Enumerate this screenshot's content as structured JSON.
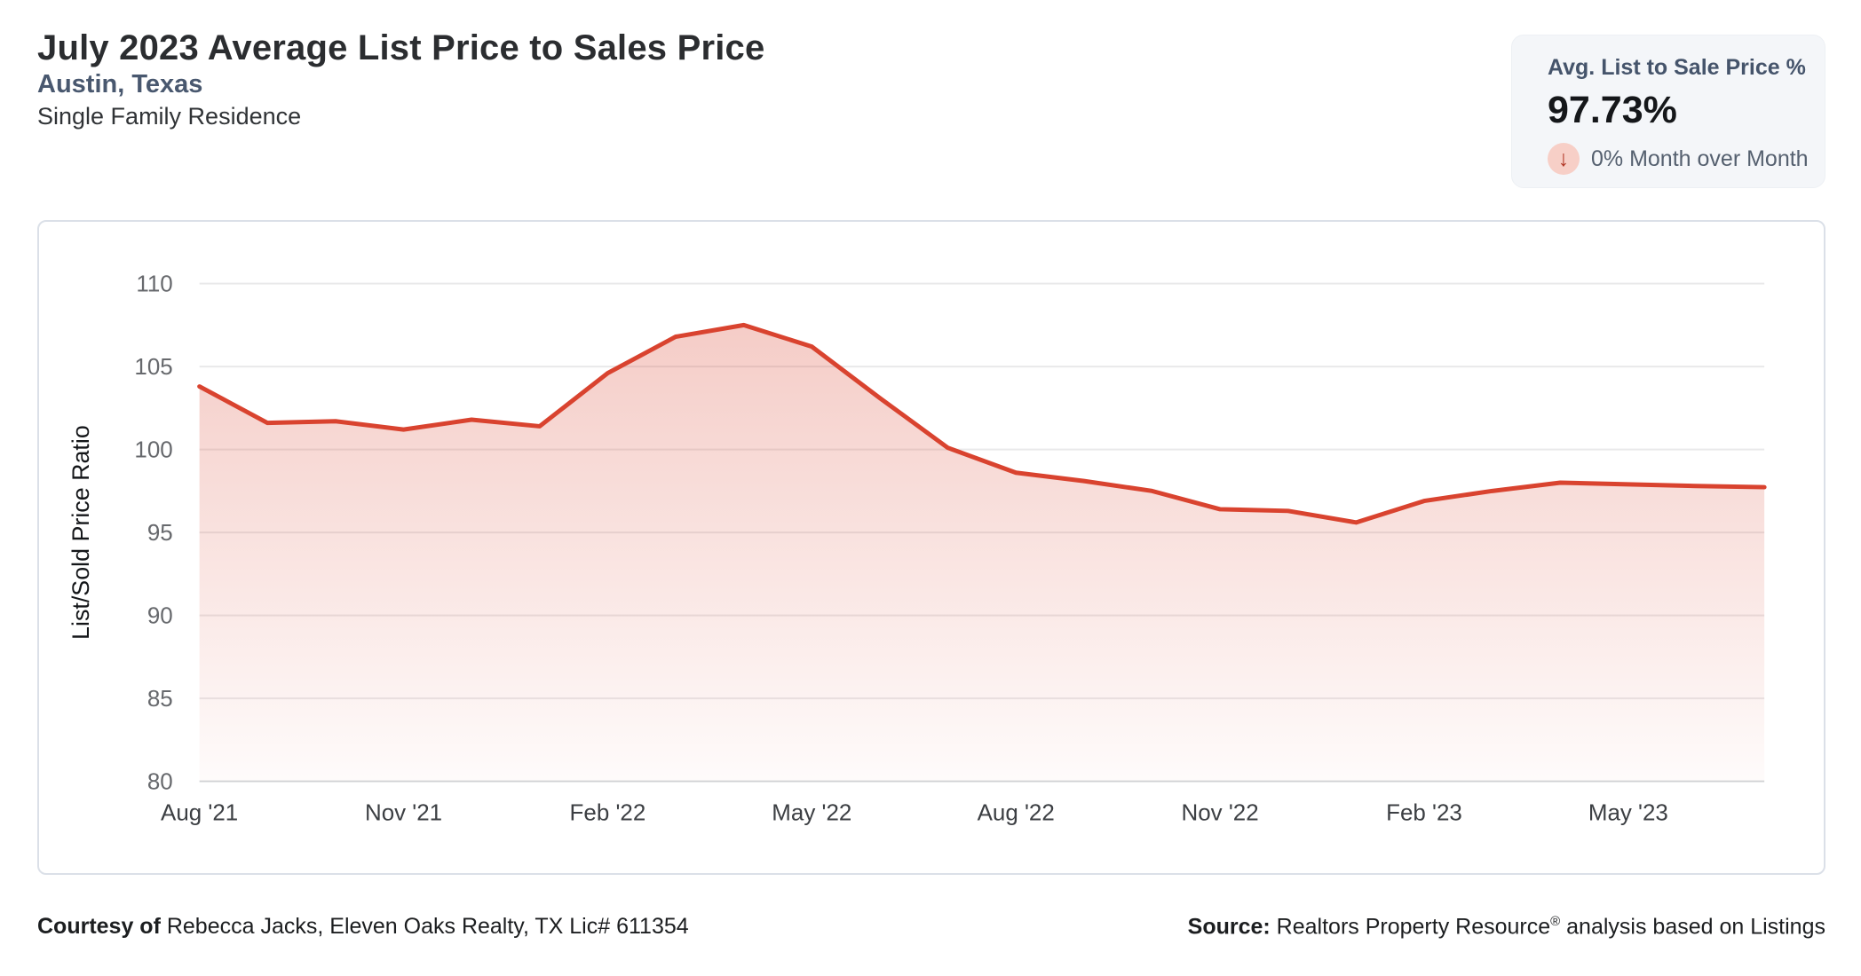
{
  "header": {
    "title": "July 2023 Average List Price to Sales Price",
    "subtitle": "Austin, Texas",
    "property_type": "Single Family Residence"
  },
  "stat_card": {
    "label": "Avg. List to Sale Price %",
    "value": "97.73%",
    "arrow_glyph": "↓",
    "mom_text": "0% Month over Month",
    "arrow_color": "#b23726",
    "arrow_bg_color": "#f7cfc7"
  },
  "chart_data": {
    "type": "area",
    "title": "",
    "ylabel": "List/Sold Price Ratio",
    "xlabel": "",
    "ylim": [
      80,
      110
    ],
    "yticks": [
      80,
      85,
      90,
      95,
      100,
      105,
      110
    ],
    "grid": true,
    "legend": "none",
    "line_color": "#d9432f",
    "x": [
      "Aug '21",
      "Sep '21",
      "Oct '21",
      "Nov '21",
      "Dec '21",
      "Jan '22",
      "Feb '22",
      "Mar '22",
      "Apr '22",
      "May '22",
      "Jun '22",
      "Jul '22",
      "Aug '22",
      "Sep '22",
      "Oct '22",
      "Nov '22",
      "Dec '22",
      "Jan '23",
      "Feb '23",
      "Mar '23",
      "Apr '23",
      "May '23",
      "Jun '23",
      "Jul '23"
    ],
    "x_ticks": [
      "Aug '21",
      "Nov '21",
      "Feb '22",
      "May '22",
      "Aug '22",
      "Nov '22",
      "Feb '23",
      "May '23"
    ],
    "values": [
      103.8,
      101.6,
      101.7,
      101.2,
      101.8,
      101.4,
      104.6,
      106.8,
      107.5,
      106.2,
      103.1,
      100.1,
      98.6,
      98.1,
      97.5,
      96.4,
      96.3,
      95.6,
      96.9,
      97.5,
      98.0,
      97.9,
      97.8,
      97.73
    ]
  },
  "footer": {
    "courtesy_bold": "Courtesy of",
    "courtesy_text": " Rebecca Jacks, Eleven Oaks Realty, TX Lic# 611354",
    "source_bold": "Source:",
    "source_text_pre": " Realtors Property Resource",
    "source_sup": "®",
    "source_text_post": " analysis based on Listings"
  }
}
